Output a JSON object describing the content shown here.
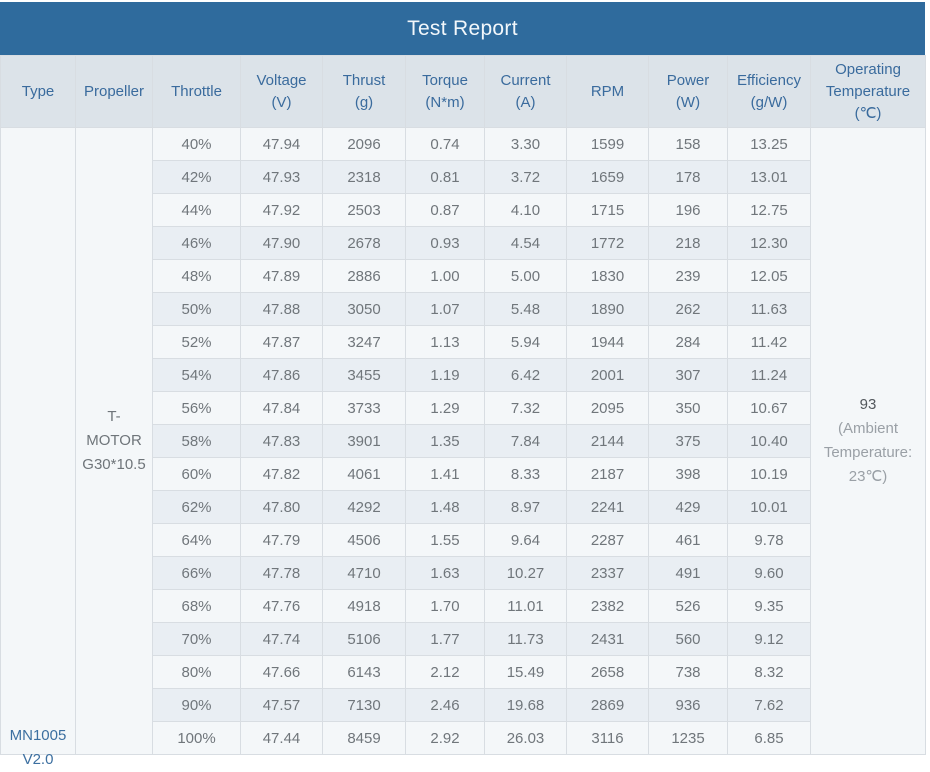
{
  "title": "Test Report",
  "columns": [
    {
      "label": "Type",
      "unit": ""
    },
    {
      "label": "Propeller",
      "unit": ""
    },
    {
      "label": "Throttle",
      "unit": ""
    },
    {
      "label": "Voltage",
      "unit": "(V)"
    },
    {
      "label": "Thrust",
      "unit": "(g)"
    },
    {
      "label": "Torque",
      "unit": "(N*m)"
    },
    {
      "label": "Current",
      "unit": "(A)"
    },
    {
      "label": "RPM",
      "unit": ""
    },
    {
      "label": "Power",
      "unit": "(W)"
    },
    {
      "label": "Efficiency",
      "unit": "(g/W)"
    },
    {
      "label": "Operating Temperature",
      "unit": "(℃)"
    }
  ],
  "type_label": "MN1005 V2.0",
  "propeller_label": "T-MOTOR G30*10.5",
  "operating_temperature": {
    "value": "93",
    "note": "(Ambient Temperature: 23℃)"
  },
  "rows": [
    [
      "40%",
      "47.94",
      "2096",
      "0.74",
      "3.30",
      "1599",
      "158",
      "13.25"
    ],
    [
      "42%",
      "47.93",
      "2318",
      "0.81",
      "3.72",
      "1659",
      "178",
      "13.01"
    ],
    [
      "44%",
      "47.92",
      "2503",
      "0.87",
      "4.10",
      "1715",
      "196",
      "12.75"
    ],
    [
      "46%",
      "47.90",
      "2678",
      "0.93",
      "4.54",
      "1772",
      "218",
      "12.30"
    ],
    [
      "48%",
      "47.89",
      "2886",
      "1.00",
      "5.00",
      "1830",
      "239",
      "12.05"
    ],
    [
      "50%",
      "47.88",
      "3050",
      "1.07",
      "5.48",
      "1890",
      "262",
      "11.63"
    ],
    [
      "52%",
      "47.87",
      "3247",
      "1.13",
      "5.94",
      "1944",
      "284",
      "11.42"
    ],
    [
      "54%",
      "47.86",
      "3455",
      "1.19",
      "6.42",
      "2001",
      "307",
      "11.24"
    ],
    [
      "56%",
      "47.84",
      "3733",
      "1.29",
      "7.32",
      "2095",
      "350",
      "10.67"
    ],
    [
      "58%",
      "47.83",
      "3901",
      "1.35",
      "7.84",
      "2144",
      "375",
      "10.40"
    ],
    [
      "60%",
      "47.82",
      "4061",
      "1.41",
      "8.33",
      "2187",
      "398",
      "10.19"
    ],
    [
      "62%",
      "47.80",
      "4292",
      "1.48",
      "8.97",
      "2241",
      "429",
      "10.01"
    ],
    [
      "64%",
      "47.79",
      "4506",
      "1.55",
      "9.64",
      "2287",
      "461",
      "9.78"
    ],
    [
      "66%",
      "47.78",
      "4710",
      "1.63",
      "10.27",
      "2337",
      "491",
      "9.60"
    ],
    [
      "68%",
      "47.76",
      "4918",
      "1.70",
      "11.01",
      "2382",
      "526",
      "9.35"
    ],
    [
      "70%",
      "47.74",
      "5106",
      "1.77",
      "11.73",
      "2431",
      "560",
      "9.12"
    ],
    [
      "80%",
      "47.66",
      "6143",
      "2.12",
      "15.49",
      "2658",
      "738",
      "8.32"
    ],
    [
      "90%",
      "47.57",
      "7130",
      "2.46",
      "19.68",
      "2869",
      "936",
      "7.62"
    ],
    [
      "100%",
      "47.44",
      "8459",
      "2.92",
      "26.03",
      "3116",
      "1235",
      "6.85"
    ]
  ],
  "colors": {
    "title_bar": "#2f6b9d",
    "title_text": "#f2f7fb",
    "header_background": "#dce3e9",
    "header_text": "#3a6b9d",
    "row_odd": "#f4f7f9",
    "row_even": "#e9eef3",
    "grid_line": "#d8dde2",
    "data_text": "#70767b",
    "type_link_text": "#3c6fa0"
  }
}
